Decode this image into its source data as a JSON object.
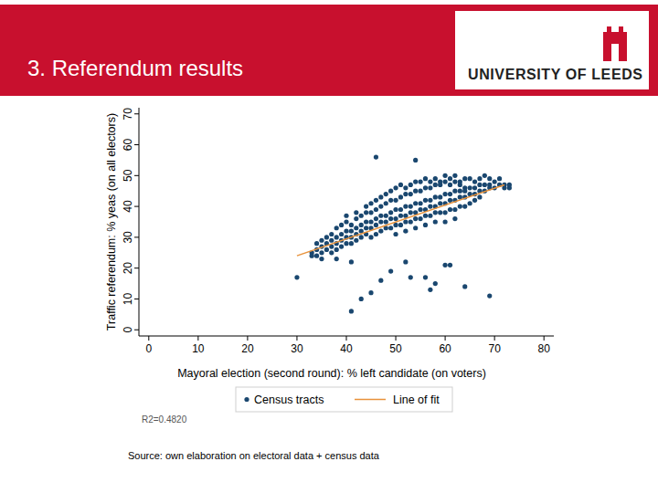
{
  "slide": {
    "title": "3. Referendum results",
    "logo": "UNIVERSITY OF LEEDS",
    "source": "Source: own elaboration on electoral data + census data"
  },
  "chart_data": {
    "type": "scatter",
    "x_label": "Mayoral election (second round): % left candidate (on voters)",
    "y_label": "Traffic referendum: % yeas (on all electors)",
    "annotations": [
      "R2=0.4820"
    ],
    "xlim": [
      -2,
      82
    ],
    "ylim": [
      -2,
      72
    ],
    "xticks": [
      0,
      10,
      20,
      30,
      40,
      50,
      60,
      70,
      80
    ],
    "yticks": [
      0,
      10,
      20,
      30,
      40,
      50,
      60,
      70
    ],
    "grid": false,
    "legend": "bottom",
    "series": [
      {
        "name": "Census tracts",
        "type": "scatter",
        "color": "#1a476f",
        "marker": "circle",
        "x": [
          33,
          33,
          34,
          34,
          34,
          35,
          35,
          35,
          35,
          36,
          36,
          36,
          37,
          37,
          37,
          37,
          38,
          38,
          38,
          38,
          39,
          39,
          39,
          39,
          40,
          40,
          40,
          40,
          40,
          41,
          41,
          41,
          41,
          42,
          42,
          42,
          42,
          42,
          43,
          43,
          43,
          43,
          44,
          44,
          44,
          44,
          44,
          45,
          45,
          45,
          45,
          45,
          46,
          46,
          46,
          46,
          46,
          47,
          47,
          47,
          47,
          47,
          48,
          48,
          48,
          48,
          48,
          49,
          49,
          49,
          49,
          49,
          50,
          50,
          50,
          50,
          50,
          50,
          51,
          51,
          51,
          51,
          51,
          52,
          52,
          52,
          52,
          52,
          52,
          53,
          53,
          53,
          53,
          53,
          54,
          54,
          54,
          54,
          54,
          54,
          55,
          55,
          55,
          55,
          55,
          56,
          56,
          56,
          56,
          56,
          56,
          57,
          57,
          57,
          57,
          57,
          58,
          58,
          58,
          58,
          58,
          58,
          59,
          59,
          59,
          59,
          59,
          60,
          60,
          60,
          60,
          60,
          60,
          61,
          61,
          61,
          61,
          61,
          62,
          62,
          62,
          62,
          62,
          62,
          63,
          63,
          63,
          63,
          63,
          64,
          64,
          64,
          64,
          64,
          65,
          65,
          65,
          65,
          66,
          66,
          66,
          66,
          67,
          67,
          67,
          67,
          68,
          68,
          68,
          69,
          69,
          69,
          70,
          70,
          71,
          71,
          72,
          72,
          73,
          73,
          46,
          54,
          30,
          47,
          45,
          43,
          41,
          69,
          64,
          56,
          58,
          60,
          61,
          53,
          57,
          38,
          41,
          49,
          52
        ],
        "values": [
          25,
          24,
          26,
          24,
          28,
          27,
          25,
          29,
          23,
          28,
          26,
          30,
          29,
          27,
          31,
          25,
          30,
          28,
          33,
          26,
          31,
          29,
          34,
          27,
          32,
          30,
          35,
          28,
          37,
          32,
          30,
          34,
          28,
          33,
          31,
          36,
          29,
          38,
          34,
          32,
          37,
          30,
          35,
          33,
          38,
          31,
          40,
          35,
          33,
          38,
          30,
          41,
          36,
          34,
          39,
          31,
          42,
          37,
          35,
          40,
          32,
          43,
          37,
          35,
          41,
          33,
          44,
          38,
          36,
          42,
          33,
          45,
          39,
          36,
          42,
          34,
          46,
          31,
          39,
          37,
          43,
          34,
          47,
          40,
          37,
          44,
          35,
          46,
          32,
          40,
          38,
          44,
          35,
          47,
          41,
          38,
          45,
          36,
          48,
          33,
          41,
          39,
          45,
          36,
          48,
          42,
          39,
          46,
          37,
          49,
          34,
          42,
          40,
          46,
          37,
          48,
          43,
          40,
          47,
          38,
          49,
          35,
          43,
          41,
          47,
          38,
          48,
          44,
          41,
          48,
          38,
          50,
          35,
          44,
          42,
          47,
          39,
          49,
          45,
          42,
          48,
          39,
          50,
          36,
          45,
          43,
          48,
          40,
          47,
          46,
          43,
          49,
          40,
          45,
          46,
          44,
          49,
          41,
          46,
          44,
          48,
          42,
          47,
          45,
          49,
          43,
          47,
          45,
          50,
          47,
          46,
          49,
          48,
          46,
          47,
          49,
          47,
          46,
          46,
          47,
          56,
          55,
          17,
          16,
          12,
          10,
          6,
          11,
          14,
          17,
          15,
          21,
          21,
          17,
          13,
          23,
          22,
          19,
          22
        ]
      },
      {
        "name": "Line of fit",
        "type": "line",
        "color": "#e8923b",
        "line_style": "solid",
        "x": [
          30,
          72
        ],
        "values": [
          24,
          47
        ]
      }
    ]
  }
}
